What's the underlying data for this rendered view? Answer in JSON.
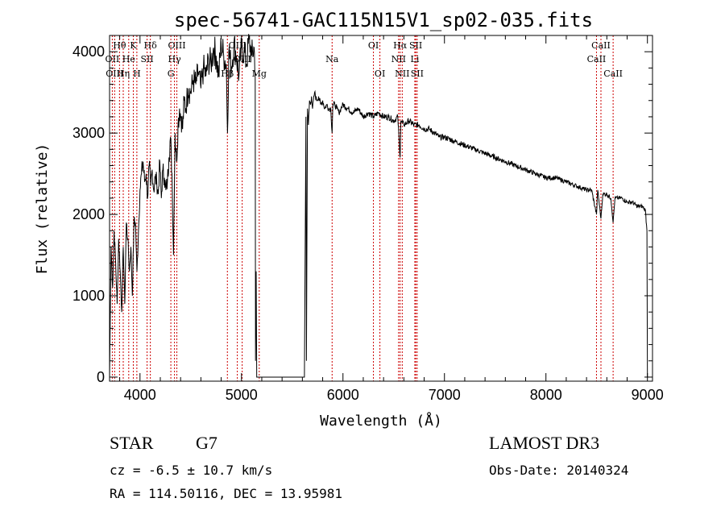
{
  "chart_data": {
    "type": "line",
    "title": "spec-56741-GAC115N15V1_sp02-035.fits",
    "xlabel": "Wavelength (Å)",
    "ylabel": "Flux (relative)",
    "xlim": [
      3700,
      9050
    ],
    "ylim": [
      -50,
      4200
    ],
    "xticks": [
      4000,
      5000,
      6000,
      7000,
      8000,
      9000
    ],
    "yticks": [
      0,
      1000,
      2000,
      3000,
      4000
    ],
    "grid": false,
    "line_color": "#000000",
    "marker_color": "#cc0000",
    "spectral_lines": [
      {
        "label": "Hθ",
        "x": 3798,
        "row": 0
      },
      {
        "label": "OII",
        "x": 3727,
        "row": 1
      },
      {
        "label": "OIII",
        "x": 3750,
        "row": 2
      },
      {
        "label": "Hη",
        "x": 3835,
        "row": 2
      },
      {
        "label": "He",
        "x": 3889,
        "row": 1
      },
      {
        "label": "K",
        "x": 3934,
        "row": 0
      },
      {
        "label": "H",
        "x": 3969,
        "row": 2
      },
      {
        "label": "SII",
        "x": 4070,
        "row": 1
      },
      {
        "label": "Hδ",
        "x": 4102,
        "row": 0
      },
      {
        "label": "OIII",
        "x": 4363,
        "row": 0
      },
      {
        "label": "Hγ",
        "x": 4340,
        "row": 1
      },
      {
        "label": "G",
        "x": 4304,
        "row": 2
      },
      {
        "label": "Hβ",
        "x": 4861,
        "row": 2
      },
      {
        "label": "OIII",
        "x": 4959,
        "row": 0
      },
      {
        "label": "OIII",
        "x": 5007,
        "row": 1
      },
      {
        "label": "Mg",
        "x": 5175,
        "row": 2
      },
      {
        "label": "Na",
        "x": 5893,
        "row": 1
      },
      {
        "label": "OI",
        "x": 6300,
        "row": 0
      },
      {
        "label": "OI",
        "x": 6364,
        "row": 2
      },
      {
        "label": "Hα",
        "x": 6563,
        "row": 0
      },
      {
        "label": "NII",
        "x": 6548,
        "row": 1
      },
      {
        "label": "NII",
        "x": 6584,
        "row": 2
      },
      {
        "label": "SII",
        "x": 6717,
        "row": 0
      },
      {
        "label": "Li",
        "x": 6708,
        "row": 1
      },
      {
        "label": "SII",
        "x": 6731,
        "row": 2
      },
      {
        "label": "CaII",
        "x": 8498,
        "row": 1
      },
      {
        "label": "CaII",
        "x": 8542,
        "row": 0
      },
      {
        "label": "CaII",
        "x": 8662,
        "row": 2
      }
    ],
    "series": [
      {
        "name": "flux",
        "x": [
          3700,
          3715,
          3730,
          3745,
          3760,
          3775,
          3790,
          3805,
          3820,
          3835,
          3850,
          3865,
          3880,
          3895,
          3910,
          3925,
          3940,
          3955,
          3970,
          3985,
          4000,
          4015,
          4030,
          4045,
          4060,
          4075,
          4090,
          4105,
          4120,
          4135,
          4150,
          4165,
          4180,
          4195,
          4210,
          4225,
          4240,
          4255,
          4270,
          4285,
          4300,
          4315,
          4330,
          4345,
          4360,
          4375,
          4390,
          4405,
          4420,
          4435,
          4450,
          4475,
          4500,
          4525,
          4550,
          4575,
          4600,
          4625,
          4650,
          4675,
          4700,
          4725,
          4750,
          4775,
          4800,
          4825,
          4850,
          4862,
          4875,
          4900,
          4925,
          4950,
          4975,
          5000,
          5025,
          5050,
          5075,
          5100,
          5125,
          5135,
          5138,
          5145,
          5150,
          5155,
          5620,
          5635,
          5640,
          5650,
          5660,
          5670,
          5680,
          5690,
          5700,
          5720,
          5740,
          5760,
          5780,
          5800,
          5820,
          5840,
          5860,
          5880,
          5893,
          5900,
          5920,
          5940,
          5960,
          5980,
          6000,
          6050,
          6100,
          6150,
          6200,
          6250,
          6300,
          6350,
          6400,
          6450,
          6500,
          6540,
          6563,
          6570,
          6600,
          6650,
          6700,
          6750,
          6800,
          6850,
          6900,
          6950,
          7000,
          7100,
          7200,
          7300,
          7400,
          7500,
          7600,
          7700,
          7800,
          7900,
          8000,
          8100,
          8200,
          8300,
          8400,
          8450,
          8498,
          8510,
          8542,
          8560,
          8600,
          8640,
          8662,
          8680,
          8750,
          8800,
          8850,
          8900,
          8950,
          8980,
          8995,
          9000
        ],
        "y": [
          0,
          1600,
          1100,
          1800,
          1400,
          900,
          1700,
          1300,
          800,
          1600,
          900,
          1900,
          1700,
          1300,
          1600,
          1000,
          1900,
          1900,
          1300,
          1800,
          2300,
          2500,
          2650,
          2400,
          2500,
          2200,
          2600,
          2350,
          2550,
          2300,
          2450,
          2400,
          2250,
          2650,
          2200,
          2550,
          2450,
          2300,
          2400,
          2700,
          2950,
          2500,
          1500,
          3000,
          2650,
          3100,
          3300,
          3200,
          3050,
          3400,
          3300,
          3550,
          3500,
          3650,
          3600,
          3750,
          3550,
          3800,
          3700,
          3900,
          3850,
          4050,
          3950,
          3700,
          4100,
          3950,
          3850,
          3000,
          4000,
          3800,
          4100,
          3950,
          3700,
          4050,
          4000,
          3850,
          4150,
          3950,
          4050,
          3750,
          200,
          1300,
          0,
          0,
          0,
          3200,
          200,
          3300,
          3100,
          3400,
          3350,
          3450,
          3300,
          3500,
          3400,
          3450,
          3350,
          3400,
          3300,
          3350,
          3300,
          3300,
          3000,
          3350,
          3350,
          3300,
          3250,
          3300,
          3350,
          3300,
          3250,
          3300,
          3200,
          3250,
          3200,
          3250,
          3200,
          3200,
          3150,
          3200,
          2700,
          3150,
          3100,
          3150,
          3100,
          3100,
          3050,
          3050,
          3000,
          2950,
          2950,
          2900,
          2850,
          2800,
          2750,
          2700,
          2650,
          2600,
          2550,
          2500,
          2450,
          2450,
          2400,
          2350,
          2300,
          2300,
          2000,
          2300,
          1950,
          2250,
          2250,
          2200,
          1900,
          2200,
          2200,
          2150,
          2150,
          2100,
          2100,
          2050,
          1800,
          0
        ]
      }
    ]
  },
  "info": {
    "object_class": "STAR",
    "subclass": "G7",
    "cz": "cz = -6.5 ± 10.7 km/s",
    "coords": "RA = 114.50116, DEC =  13.95981",
    "survey": "LAMOST DR3",
    "obs_date": "Obs-Date: 20140324"
  }
}
